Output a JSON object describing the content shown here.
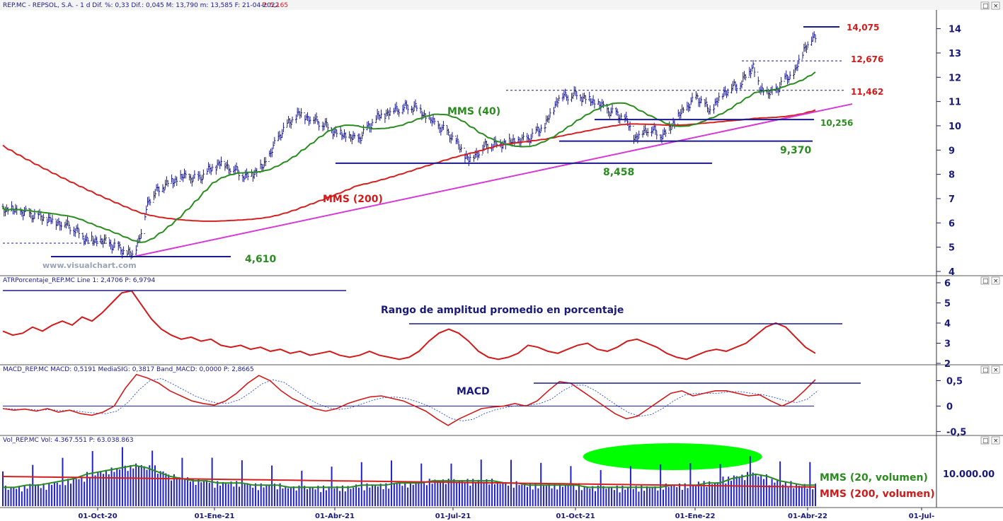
{
  "panels": {
    "price": {
      "header": "REP.MC - REPSOL, S.A. - 1 d Dif. %: 0,33 Dif.: 0,045 M: 13,790 m: 13,585 F: 21-04-2022",
      "header_extra": "P: 5,165",
      "watermark": "www.visualchart.com"
    },
    "atr": {
      "header": "ATRPorcentaje_REP.MC Line 1: 2,4706 P: 6,9794",
      "annotation": "Rango de amplitud promedio en porcentaje"
    },
    "macd": {
      "header": "MACD_REP.MC MACD: 0,5191 MediaSIG: 0,3817 Band_MACD: 0,0000 P: 2,8665",
      "annotation": "MACD"
    },
    "volume": {
      "header": "Vol_REP.MC Vol: 4.367.551 P: 63.038.863"
    }
  },
  "chart_data": [
    {
      "type": "ohlc",
      "panel": "price",
      "x_axis": [
        "01-Oct-20",
        "01-Ene-21",
        "01-Abr-21",
        "01-Jul-21",
        "01-Oct-21",
        "01-Ene-22",
        "01-Abr-22",
        "01-Jul-"
      ],
      "ylim": [
        4,
        14.6
      ],
      "yticks": [
        "4",
        "5",
        "6",
        "7",
        "8",
        "9",
        "10",
        "11",
        "12",
        "13",
        "14"
      ],
      "anchors": [
        {
          "date": "2020-07-20",
          "close": 6.6
        },
        {
          "date": "2020-08-15",
          "close": 6.3
        },
        {
          "date": "2020-09-10",
          "close": 5.9
        },
        {
          "date": "2020-09-25",
          "close": 5.3
        },
        {
          "date": "2020-10-10",
          "close": 5.2
        },
        {
          "date": "2020-10-25",
          "close": 4.8
        },
        {
          "date": "2020-10-30",
          "close": 4.65
        },
        {
          "date": "2020-11-06",
          "close": 5.6
        },
        {
          "date": "2020-11-12",
          "close": 7.0
        },
        {
          "date": "2020-11-25",
          "close": 7.6
        },
        {
          "date": "2020-12-10",
          "close": 7.9
        },
        {
          "date": "2020-12-20",
          "close": 7.8
        },
        {
          "date": "2021-01-08",
          "close": 8.5
        },
        {
          "date": "2021-01-28",
          "close": 7.9
        },
        {
          "date": "2021-02-10",
          "close": 8.3
        },
        {
          "date": "2021-02-25",
          "close": 9.8
        },
        {
          "date": "2021-03-10",
          "close": 10.5
        },
        {
          "date": "2021-03-25",
          "close": 10.2
        },
        {
          "date": "2021-04-10",
          "close": 9.7
        },
        {
          "date": "2021-04-25",
          "close": 9.4
        },
        {
          "date": "2021-05-10",
          "close": 10.3
        },
        {
          "date": "2021-05-25",
          "close": 10.7
        },
        {
          "date": "2021-06-10",
          "close": 10.8
        },
        {
          "date": "2021-06-20",
          "close": 10.3
        },
        {
          "date": "2021-07-08",
          "close": 9.6
        },
        {
          "date": "2021-07-22",
          "close": 8.6
        },
        {
          "date": "2021-08-05",
          "close": 9.2
        },
        {
          "date": "2021-08-20",
          "close": 9.3
        },
        {
          "date": "2021-09-05",
          "close": 9.4
        },
        {
          "date": "2021-09-20",
          "close": 10.0
        },
        {
          "date": "2021-10-01",
          "close": 11.2
        },
        {
          "date": "2021-10-15",
          "close": 11.3
        },
        {
          "date": "2021-10-28",
          "close": 11.0
        },
        {
          "date": "2021-11-10",
          "close": 10.6
        },
        {
          "date": "2021-11-22",
          "close": 10.3
        },
        {
          "date": "2021-11-30",
          "close": 9.5
        },
        {
          "date": "2021-12-10",
          "close": 9.9
        },
        {
          "date": "2021-12-22",
          "close": 9.6
        },
        {
          "date": "2022-01-05",
          "close": 10.5
        },
        {
          "date": "2022-01-18",
          "close": 11.2
        },
        {
          "date": "2022-01-28",
          "close": 10.6
        },
        {
          "date": "2022-02-08",
          "close": 11.4
        },
        {
          "date": "2022-02-22",
          "close": 11.8
        },
        {
          "date": "2022-03-03",
          "close": 12.5
        },
        {
          "date": "2022-03-08",
          "close": 11.5
        },
        {
          "date": "2022-03-18",
          "close": 11.3
        },
        {
          "date": "2022-03-28",
          "close": 11.9
        },
        {
          "date": "2022-04-05",
          "close": 12.2
        },
        {
          "date": "2022-04-12",
          "close": 13.2
        },
        {
          "date": "2022-04-21",
          "close": 13.7
        }
      ],
      "moving_averages": [
        {
          "name": "MMS (40)",
          "color": "#2a8c1e"
        },
        {
          "name": "MMS (200)",
          "color": "#d32020"
        }
      ],
      "levels": [
        {
          "label": "14,075",
          "value": 14.075,
          "color": "#d11a1a"
        },
        {
          "label": "12,676",
          "value": 12.676,
          "color": "#d11a1a"
        },
        {
          "label": "11,462",
          "value": 11.462,
          "color": "#d11a1a"
        },
        {
          "label": "10,256",
          "value": 10.256,
          "color": "#2a8c1e"
        },
        {
          "label": "9,370",
          "value": 9.37,
          "color": "#2a8c1e"
        },
        {
          "label": "8,458",
          "value": 8.458,
          "color": "#2a8c1e"
        },
        {
          "label": "4,610",
          "value": 4.61,
          "color": "#2a8c1e"
        }
      ],
      "trendline": {
        "color": "#d63ad6",
        "from": [
          "2020-10-30",
          4.6
        ],
        "to": [
          "2022-05-20",
          10.9
        ]
      }
    },
    {
      "type": "line",
      "panel": "atr",
      "name": "ATRPorcentaje",
      "ylim": [
        2,
        6
      ],
      "yticks": [
        "2",
        "3",
        "4",
        "5",
        "6"
      ],
      "values": [
        3.6,
        3.4,
        3.5,
        3.8,
        3.6,
        3.9,
        4.1,
        3.9,
        4.3,
        4.1,
        4.5,
        5.0,
        5.5,
        5.6,
        4.9,
        4.2,
        3.7,
        3.4,
        3.2,
        3.3,
        3.1,
        3.2,
        2.9,
        2.8,
        2.9,
        2.7,
        2.8,
        2.6,
        2.7,
        2.5,
        2.6,
        2.4,
        2.5,
        2.6,
        2.4,
        2.3,
        2.4,
        2.6,
        2.4,
        2.3,
        2.2,
        2.3,
        2.6,
        3.1,
        3.5,
        3.7,
        3.5,
        3.1,
        2.6,
        2.3,
        2.2,
        2.3,
        2.5,
        2.9,
        2.8,
        2.6,
        2.5,
        2.7,
        2.9,
        3.0,
        2.7,
        2.6,
        2.8,
        3.1,
        3.2,
        3.0,
        2.8,
        2.5,
        2.3,
        2.2,
        2.4,
        2.6,
        2.7,
        2.6,
        2.8,
        3.0,
        3.4,
        3.8,
        4.0,
        3.8,
        3.3,
        2.8,
        2.5
      ]
    },
    {
      "type": "line",
      "panel": "macd",
      "series": [
        {
          "name": "MACD",
          "color": "#d11a1a"
        },
        {
          "name": "MediaSIG",
          "color": "#3b5bd6"
        }
      ],
      "ylim": [
        -0.55,
        0.7
      ],
      "yticks": [
        "0,5",
        "0",
        "-0,5"
      ],
      "values": [
        -0.05,
        -0.08,
        -0.06,
        -0.1,
        -0.05,
        -0.12,
        -0.08,
        -0.15,
        -0.18,
        -0.12,
        0.0,
        0.35,
        0.62,
        0.55,
        0.45,
        0.3,
        0.2,
        0.1,
        0.05,
        0.02,
        0.1,
        0.25,
        0.45,
        0.6,
        0.5,
        0.3,
        0.15,
        0.05,
        -0.05,
        -0.1,
        -0.05,
        0.05,
        0.12,
        0.18,
        0.2,
        0.15,
        0.1,
        0.0,
        -0.1,
        -0.25,
        -0.38,
        -0.25,
        -0.15,
        -0.05,
        -0.02,
        0.0,
        0.05,
        0.0,
        0.1,
        0.3,
        0.48,
        0.45,
        0.3,
        0.15,
        0.0,
        -0.15,
        -0.25,
        -0.2,
        -0.05,
        0.1,
        0.25,
        0.3,
        0.2,
        0.25,
        0.3,
        0.3,
        0.25,
        0.2,
        0.22,
        0.1,
        0.0,
        0.1,
        0.3,
        0.52
      ]
    },
    {
      "type": "bar",
      "panel": "volume",
      "ytick": "10.000.00",
      "moving_averages": [
        {
          "name": "MMS (20, volumen)",
          "color": "#2a8c1e"
        },
        {
          "name": "MMS (200, volumen)",
          "color": "#d32020"
        }
      ],
      "highlight": {
        "from": "2021-10-20",
        "to": "2022-03-10",
        "color": "#00ff00"
      },
      "profile": [
        6,
        6,
        7,
        7,
        8,
        9,
        10,
        12,
        13,
        14,
        15,
        16,
        15,
        13,
        11,
        10,
        9,
        9,
        8,
        8,
        8,
        7,
        7,
        7,
        6,
        6,
        6,
        6,
        6,
        6,
        7,
        7,
        7,
        8,
        8,
        8,
        9,
        9,
        9,
        9,
        9,
        9,
        8,
        8,
        7,
        7,
        7,
        7,
        7,
        6,
        6,
        6,
        6,
        6,
        6,
        6,
        7,
        7,
        7,
        8,
        8,
        10,
        11,
        12,
        11,
        9,
        8,
        7,
        7
      ]
    }
  ]
}
